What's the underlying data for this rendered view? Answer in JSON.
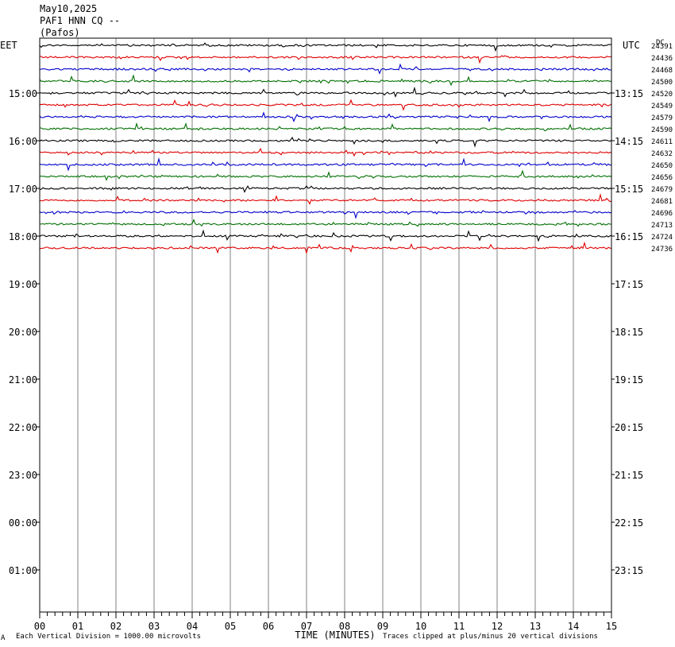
{
  "header": {
    "date": "May10,2025",
    "station": "PAF1 HNN CQ --",
    "location": "(Pafos)"
  },
  "chart_data": {
    "type": "line",
    "left_axis_label": "EET",
    "right_axis_label": "UTC",
    "corner_label": "DC",
    "xlabel": "TIME (MINUTES)",
    "x_ticks": [
      "00",
      "01",
      "02",
      "03",
      "04",
      "05",
      "06",
      "07",
      "08",
      "09",
      "10",
      "11",
      "12",
      "13",
      "14",
      "15"
    ],
    "xlim": [
      0,
      15
    ],
    "left_hour_labels": [
      "15:00",
      "16:00",
      "17:00",
      "18:00",
      "19:00",
      "20:00",
      "21:00",
      "22:00",
      "23:00",
      "00:00",
      "01:00"
    ],
    "right_hour_labels": [
      "13:15",
      "14:15",
      "15:15",
      "16:15",
      "17:15",
      "18:15",
      "19:15",
      "20:15",
      "21:15",
      "22:15",
      "23:15"
    ],
    "trace_colors": [
      "#000000",
      "#e00000",
      "#0000cc",
      "#007000"
    ],
    "trace_counts": [
      "24391",
      "24436",
      "24468",
      "24500",
      "24520",
      "24549",
      "24579",
      "24590",
      "24611",
      "24632",
      "24650",
      "24656",
      "24679",
      "24681",
      "24696",
      "24713",
      "24724",
      "24736"
    ],
    "footer_left_mark": "A",
    "footer_scale": "Each Vertical Division = 1000.00 microvolts",
    "footer_clip": "Traces clipped at plus/minus 20 vertical divisions"
  }
}
